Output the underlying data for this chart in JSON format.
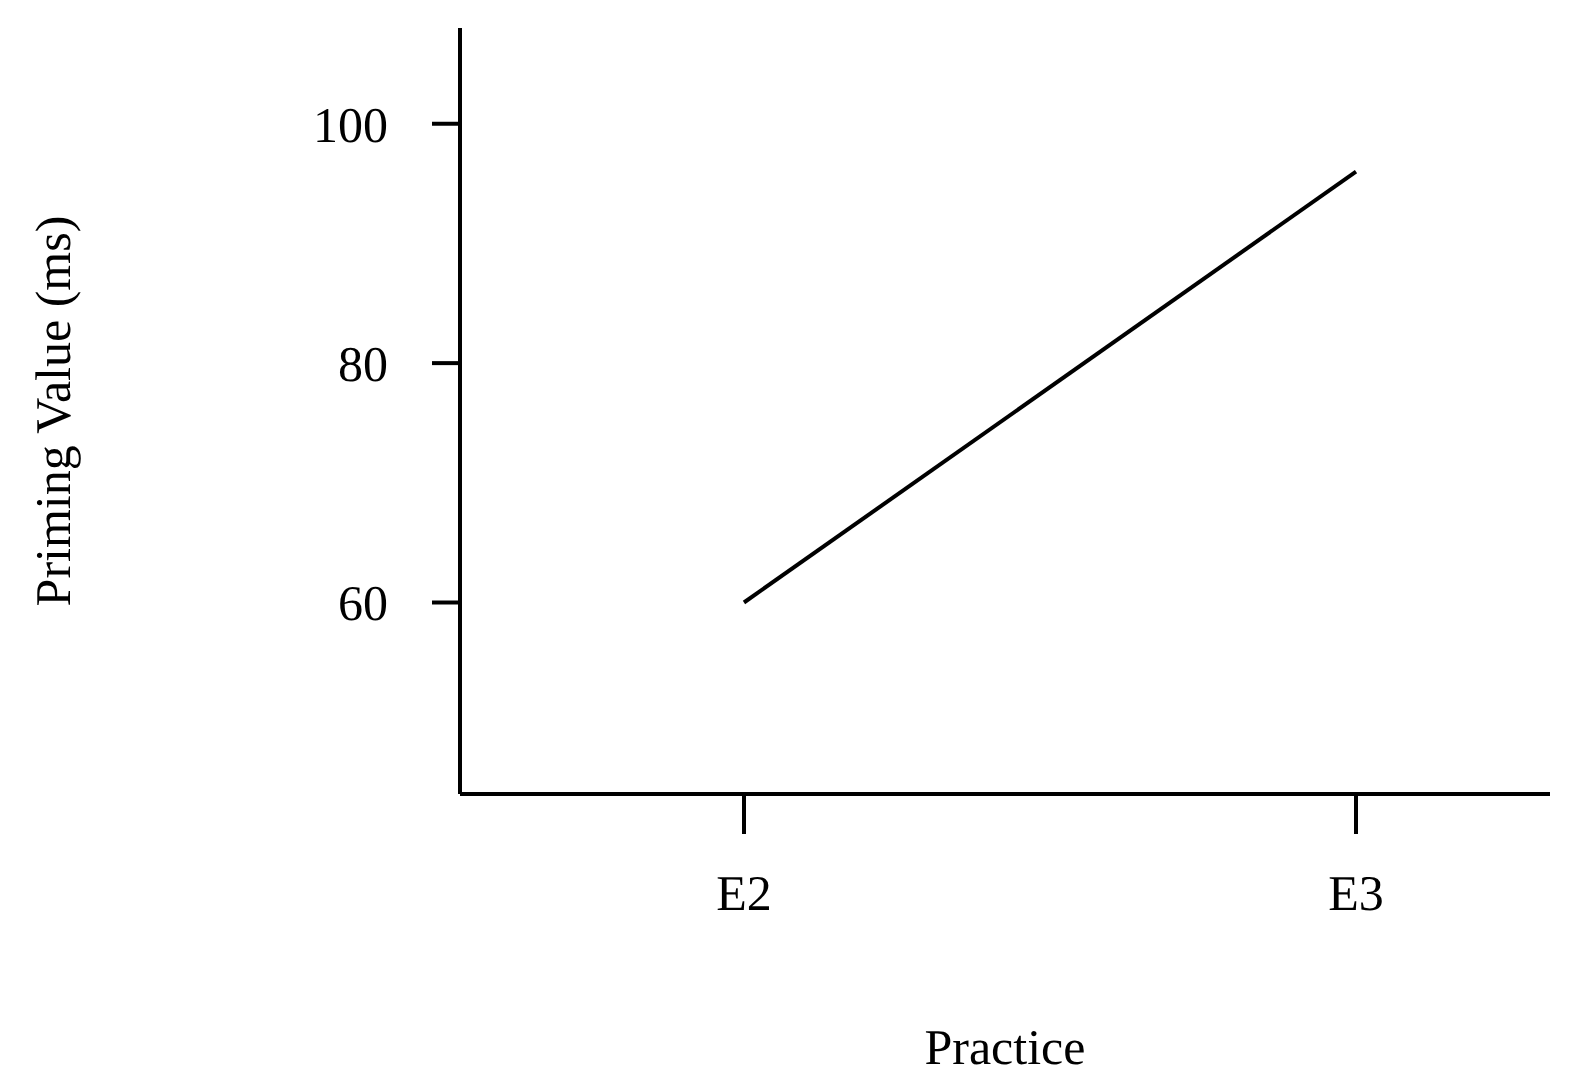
{
  "chart_data": {
    "type": "line",
    "xlabel": "Practice",
    "ylabel": "Priming Value (ms)",
    "categories": [
      "E2",
      "E3"
    ],
    "series": [
      {
        "color": "#000000",
        "values": [
          60,
          96
        ]
      }
    ],
    "ylim": [
      44,
      108
    ],
    "yticks": [
      60,
      80,
      100
    ],
    "grid": false,
    "legend": false,
    "marker": "none",
    "line_style": "solid"
  }
}
